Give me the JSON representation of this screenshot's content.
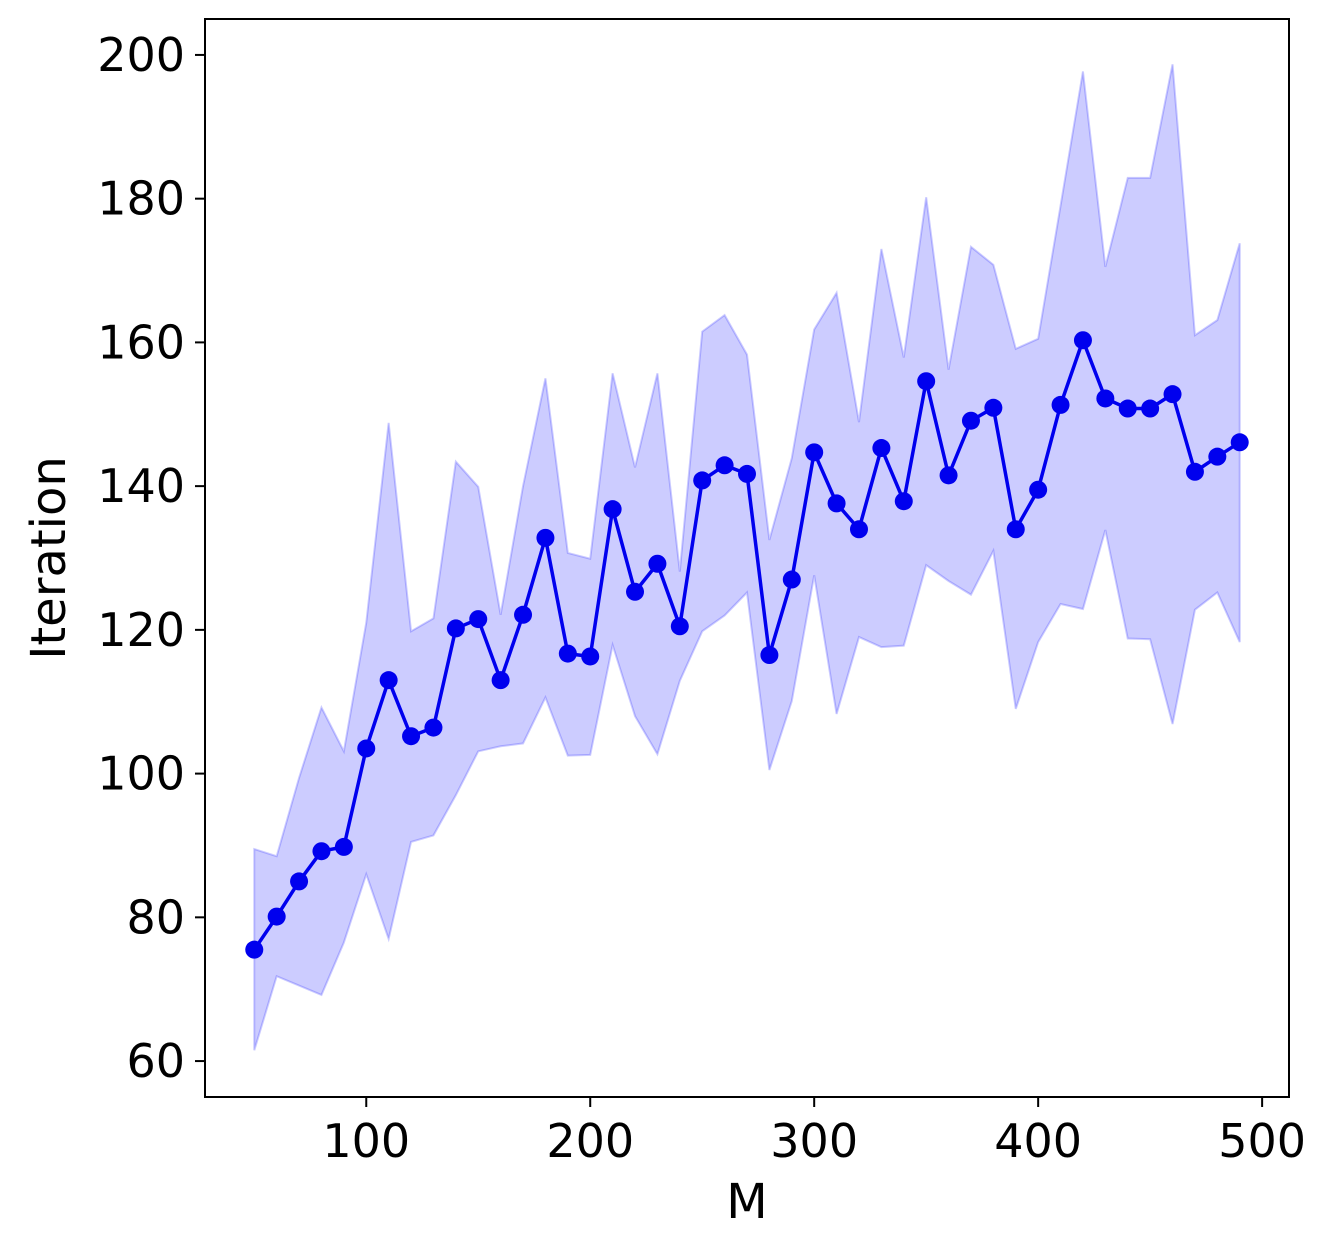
{
  "chart_data": {
    "type": "line",
    "title": "",
    "xlabel": "M",
    "ylabel": "Iteration",
    "xlim": [
      28,
      512
    ],
    "ylim": [
      55,
      205
    ],
    "x_ticks": [
      100,
      200,
      300,
      400,
      500
    ],
    "x_tick_labels": [
      "100",
      "200",
      "300",
      "400",
      "500"
    ],
    "y_ticks": [
      60,
      80,
      100,
      120,
      140,
      160,
      180,
      200
    ],
    "y_tick_labels": [
      "60",
      "80",
      "100",
      "120",
      "140",
      "160",
      "180",
      "200"
    ],
    "grid": false,
    "colors": {
      "line": "#0000ee",
      "band": "#0000ff"
    },
    "series": [
      {
        "x": [
          50,
          60,
          70,
          80,
          90,
          100,
          110,
          120,
          130,
          140,
          150,
          160,
          170,
          180,
          190,
          200,
          210,
          220,
          230,
          240,
          250,
          260,
          270,
          280,
          290,
          300,
          310,
          320,
          330,
          340,
          350,
          360,
          370,
          380,
          390,
          400,
          410,
          420,
          430,
          440,
          450,
          460,
          470,
          480,
          490
        ],
        "mean": [
          75.5,
          80.1,
          85.0,
          89.2,
          89.8,
          103.5,
          113.0,
          105.2,
          106.4,
          120.2,
          121.5,
          113.0,
          122.1,
          132.8,
          116.7,
          116.3,
          136.8,
          125.3,
          129.2,
          120.5,
          140.8,
          142.9,
          141.7,
          116.5,
          127.0,
          144.7,
          137.6,
          134.0,
          145.3,
          137.9,
          154.6,
          141.5,
          149.1,
          150.9,
          134.0,
          139.5,
          151.3,
          160.3,
          152.2,
          150.8,
          150.8,
          152.8,
          142.0,
          144.1,
          146.1
        ],
        "lower": [
          61.5,
          71.8,
          70.5,
          69.2,
          76.5,
          86.0,
          77.0,
          90.5,
          91.4,
          97.0,
          103.1,
          103.8,
          104.2,
          110.6,
          102.5,
          102.6,
          117.9,
          108.0,
          102.7,
          112.9,
          119.8,
          122.0,
          125.2,
          100.5,
          110.1,
          127.6,
          108.3,
          119.0,
          117.6,
          117.8,
          129.0,
          126.8,
          124.9,
          131.0,
          109.0,
          118.3,
          123.6,
          122.9,
          133.9,
          118.8,
          118.7,
          106.9,
          122.8,
          125.2,
          118.3
        ],
        "upper": [
          89.5,
          88.5,
          99.4,
          109.2,
          103.1,
          121.0,
          148.8,
          119.8,
          121.6,
          143.4,
          139.9,
          122.1,
          140.0,
          155.0,
          130.7,
          129.9,
          155.7,
          142.6,
          155.7,
          128.1,
          161.5,
          163.8,
          158.3,
          132.5,
          143.9,
          161.8,
          166.9,
          148.9,
          173.0,
          157.9,
          180.2,
          156.2,
          173.3,
          170.8,
          159.1,
          160.5,
          179.0,
          197.7,
          170.5,
          182.9,
          182.9,
          198.7,
          161.0,
          163.1,
          173.8
        ]
      }
    ]
  }
}
